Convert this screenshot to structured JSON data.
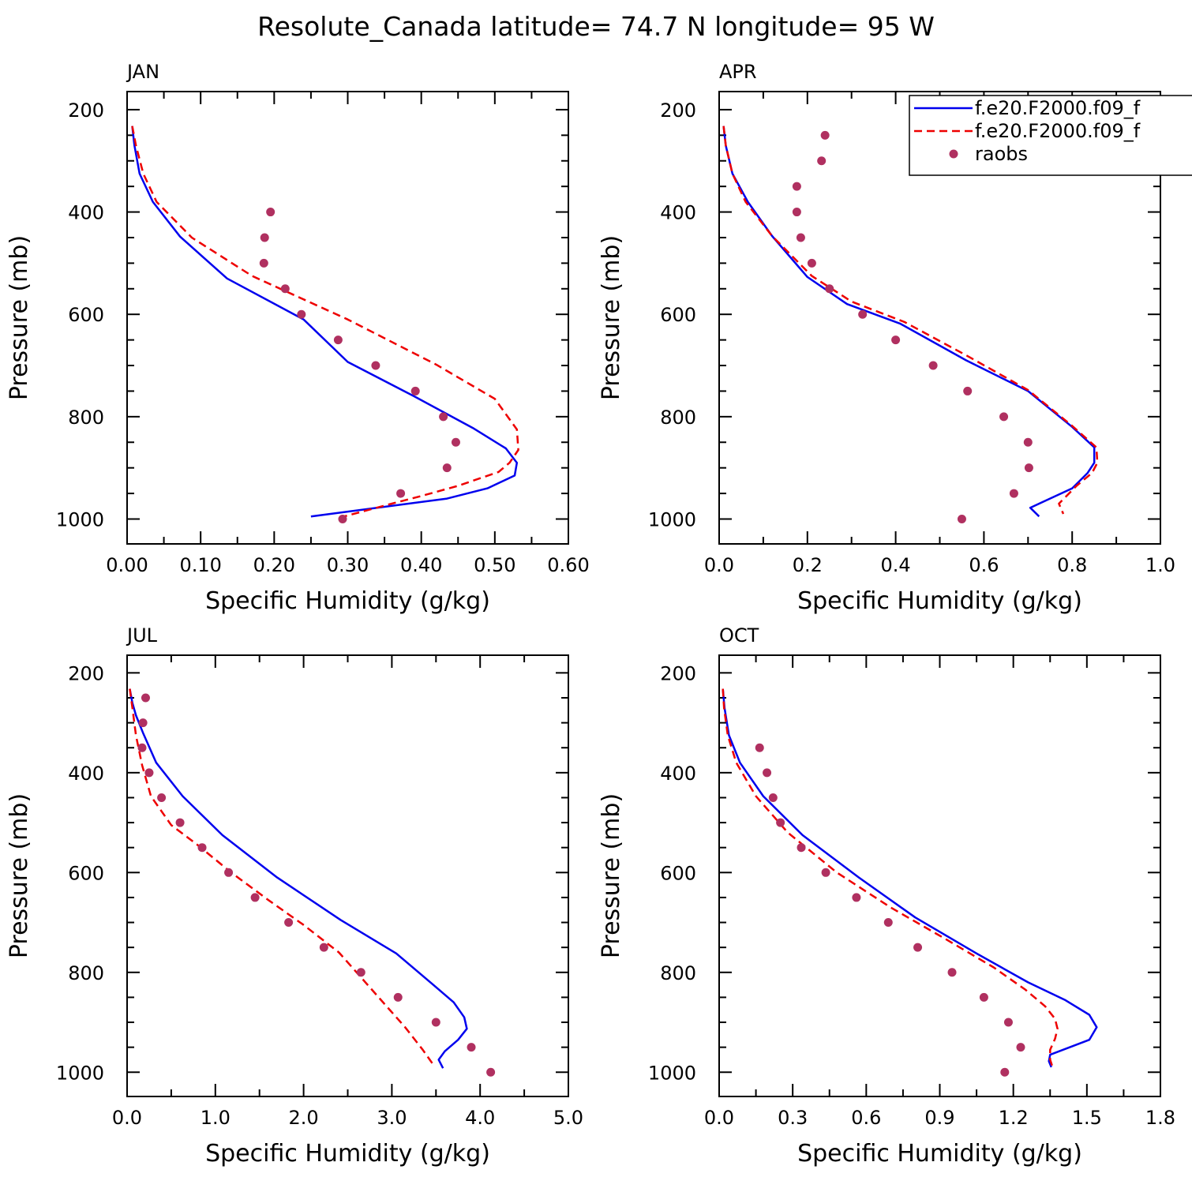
{
  "title": "Resolute_Canada  latitude= 74.7 N longitude= 95 W",
  "legend": {
    "placement": "top-right of APR panel",
    "entries": [
      {
        "label": "f.e20.F2000.f09_f",
        "color": "#0000ee",
        "style": "solid"
      },
      {
        "label": "f.e20.F2000.f09_f",
        "color": "#ee0000",
        "style": "dashed"
      },
      {
        "label": "raobs",
        "color": "#b03060",
        "style": "dot"
      }
    ]
  },
  "chart_data": [
    {
      "type": "line",
      "title": "JAN",
      "xlabel": "Specific Humidity (g/kg)",
      "ylabel": "Pressure (mb)",
      "xlim": [
        0,
        0.6
      ],
      "ylim": [
        200,
        1000
      ],
      "y_inverted": true,
      "grid": false,
      "xticks": [
        "0.00",
        "0.10",
        "0.20",
        "0.30",
        "0.40",
        "0.50",
        "0.60"
      ],
      "yticks": [
        "200",
        "400",
        "600",
        "800",
        "1000"
      ],
      "series": [
        {
          "name": "f.e20.F2000.f09_f",
          "color": "#0000ee",
          "style": "solid",
          "x": [
            0.007,
            0.01,
            0.017,
            0.035,
            0.072,
            0.136,
            0.24,
            0.3,
            0.39,
            0.47,
            0.515,
            0.53,
            0.527,
            0.49,
            0.435,
            0.25
          ],
          "y": [
            232,
            270,
            325,
            380,
            448,
            530,
            610,
            693,
            760,
            822,
            862,
            890,
            915,
            940,
            960,
            995
          ]
        },
        {
          "name": "f.e20.F2000.f09_f",
          "color": "#ee0000",
          "style": "dashed",
          "x": [
            0.007,
            0.012,
            0.022,
            0.04,
            0.088,
            0.17,
            0.3,
            0.42,
            0.5,
            0.53,
            0.532,
            0.52,
            0.505,
            0.45,
            0.4,
            0.36,
            0.29
          ],
          "y": [
            232,
            270,
            325,
            380,
            450,
            525,
            610,
            698,
            765,
            825,
            865,
            890,
            908,
            935,
            955,
            970,
            997
          ]
        },
        {
          "name": "raobs",
          "color": "#b03060",
          "style": "dot",
          "x": [
            0.195,
            0.187,
            0.186,
            0.215,
            0.237,
            0.287,
            0.338,
            0.392,
            0.43,
            0.447,
            0.435,
            0.372,
            0.293
          ],
          "y": [
            400,
            450,
            500,
            550,
            600,
            650,
            700,
            750,
            800,
            850,
            900,
            950,
            1000
          ]
        }
      ]
    },
    {
      "type": "line",
      "title": "APR",
      "xlabel": "Specific Humidity (g/kg)",
      "ylabel": "Pressure (mb)",
      "xlim": [
        0,
        1.0
      ],
      "ylim": [
        200,
        1000
      ],
      "y_inverted": true,
      "grid": false,
      "xticks": [
        "0.0",
        "0.2",
        "0.4",
        "0.6",
        "0.8",
        "1.0"
      ],
      "yticks": [
        "200",
        "400",
        "600",
        "800",
        "1000"
      ],
      "series": [
        {
          "name": "f.e20.F2000.f09_f",
          "color": "#0000ee",
          "style": "solid",
          "x": [
            0.01,
            0.015,
            0.03,
            0.065,
            0.12,
            0.2,
            0.29,
            0.41,
            0.56,
            0.7,
            0.8,
            0.85,
            0.85,
            0.835,
            0.8,
            0.705,
            0.725
          ],
          "y": [
            232,
            270,
            325,
            380,
            447,
            527,
            580,
            618,
            690,
            750,
            820,
            860,
            890,
            910,
            940,
            978,
            995
          ]
        },
        {
          "name": "f.e20.F2000.f09_f",
          "color": "#ee0000",
          "style": "dashed",
          "x": [
            0.01,
            0.015,
            0.03,
            0.06,
            0.12,
            0.21,
            0.3,
            0.42,
            0.56,
            0.7,
            0.8,
            0.855,
            0.857,
            0.845,
            0.81,
            0.77,
            0.78
          ],
          "y": [
            232,
            270,
            325,
            380,
            447,
            525,
            575,
            615,
            680,
            748,
            818,
            860,
            890,
            910,
            935,
            970,
            990
          ]
        },
        {
          "name": "raobs",
          "color": "#b03060",
          "style": "dot",
          "x": [
            0.24,
            0.232,
            0.176,
            0.176,
            0.185,
            0.21,
            0.25,
            0.325,
            0.4,
            0.485,
            0.563,
            0.645,
            0.7,
            0.702,
            0.668,
            0.55
          ],
          "y": [
            250,
            300,
            350,
            400,
            450,
            500,
            550,
            600,
            650,
            700,
            750,
            800,
            850,
            900,
            950,
            1000
          ]
        }
      ]
    },
    {
      "type": "line",
      "title": "JUL",
      "xlabel": "Specific Humidity (g/kg)",
      "ylabel": "Pressure (mb)",
      "xlim": [
        0,
        5.0
      ],
      "ylim": [
        200,
        1000
      ],
      "y_inverted": true,
      "grid": false,
      "xticks": [
        "0.0",
        "1.0",
        "2.0",
        "3.0",
        "4.0",
        "5.0"
      ],
      "yticks": [
        "200",
        "400",
        "600",
        "800",
        "1000"
      ],
      "series": [
        {
          "name": "f.e20.F2000.f09_f",
          "color": "#0000ee",
          "style": "solid",
          "x": [
            0.03,
            0.06,
            0.1,
            0.18,
            0.33,
            0.63,
            1.08,
            1.7,
            2.42,
            3.05,
            3.47,
            3.7,
            3.82,
            3.85,
            3.75,
            3.6,
            3.53,
            3.58
          ],
          "y": [
            232,
            260,
            285,
            320,
            380,
            447,
            525,
            610,
            695,
            762,
            825,
            860,
            890,
            913,
            935,
            958,
            975,
            992
          ]
        },
        {
          "name": "f.e20.F2000.f09_f",
          "color": "#ee0000",
          "style": "dashed",
          "x": [
            0.03,
            0.06,
            0.1,
            0.17,
            0.27,
            0.5,
            0.8,
            1.18,
            1.6,
            2.0,
            2.4,
            2.7,
            2.95,
            3.15,
            3.35,
            3.47
          ],
          "y": [
            232,
            270,
            325,
            385,
            447,
            505,
            545,
            600,
            655,
            705,
            760,
            820,
            870,
            910,
            955,
            985
          ]
        },
        {
          "name": "raobs",
          "color": "#b03060",
          "style": "dot",
          "x": [
            0.21,
            0.18,
            0.17,
            0.25,
            0.39,
            0.6,
            0.85,
            1.15,
            1.45,
            1.83,
            2.23,
            2.65,
            3.07,
            3.5,
            3.9,
            4.12
          ],
          "y": [
            250,
            300,
            350,
            400,
            450,
            500,
            550,
            600,
            650,
            700,
            750,
            800,
            850,
            900,
            950,
            1000
          ]
        }
      ]
    },
    {
      "type": "line",
      "title": "OCT",
      "xlabel": "Specific Humidity (g/kg)",
      "ylabel": "Pressure (mb)",
      "xlim": [
        0,
        1.8
      ],
      "ylim": [
        200,
        1000
      ],
      "y_inverted": true,
      "grid": false,
      "xticks": [
        "0.0",
        "0.3",
        "0.6",
        "0.9",
        "1.2",
        "1.5",
        "1.8"
      ],
      "yticks": [
        "200",
        "400",
        "600",
        "800",
        "1000"
      ],
      "series": [
        {
          "name": "f.e20.F2000.f09_f",
          "color": "#0000ee",
          "style": "solid",
          "x": [
            0.015,
            0.022,
            0.04,
            0.085,
            0.18,
            0.34,
            0.57,
            0.8,
            1.05,
            1.26,
            1.41,
            1.51,
            1.54,
            1.51,
            1.35,
            1.345,
            1.355
          ],
          "y": [
            232,
            270,
            325,
            380,
            447,
            525,
            610,
            690,
            762,
            820,
            855,
            885,
            910,
            935,
            965,
            978,
            990
          ]
        },
        {
          "name": "f.e20.F2000.f09_f",
          "color": "#ee0000",
          "style": "dashed",
          "x": [
            0.015,
            0.02,
            0.035,
            0.07,
            0.15,
            0.28,
            0.48,
            0.7,
            0.93,
            1.12,
            1.25,
            1.33,
            1.37,
            1.38,
            1.37,
            1.35,
            1.35,
            1.36
          ],
          "y": [
            232,
            270,
            325,
            380,
            447,
            520,
            600,
            670,
            735,
            790,
            835,
            868,
            893,
            913,
            933,
            955,
            975,
            990
          ]
        },
        {
          "name": "raobs",
          "color": "#b03060",
          "style": "dot",
          "x": [
            0.165,
            0.195,
            0.22,
            0.25,
            0.335,
            0.435,
            0.56,
            0.69,
            0.81,
            0.95,
            1.08,
            1.18,
            1.23,
            1.165
          ],
          "y": [
            350,
            400,
            450,
            500,
            550,
            600,
            650,
            700,
            750,
            800,
            850,
            900,
            950,
            1000
          ]
        }
      ]
    }
  ]
}
